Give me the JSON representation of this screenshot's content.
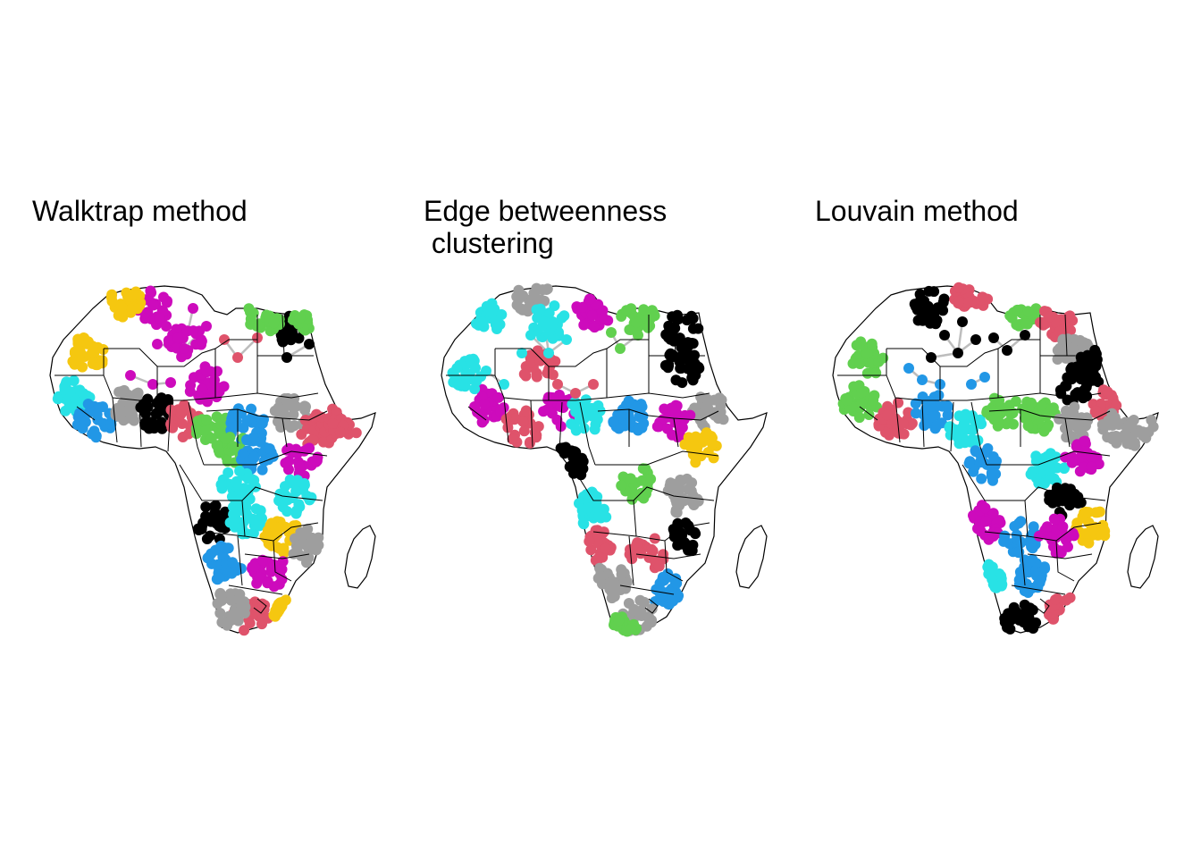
{
  "figure": {
    "panels": [
      {
        "title": "Walktrap method",
        "seed": 11,
        "palette": [
          "#df536b",
          "#2297e6",
          "#61d04f",
          "#cd0bbc",
          "#28e2e5",
          "#f5c710",
          "#9e9e9e",
          "#000000"
        ]
      },
      {
        "title": "Edge betweenness\n clustering",
        "seed": 37,
        "palette": [
          "#df536b",
          "#28e2e5",
          "#cd0bbc",
          "#2297e6",
          "#61d04f",
          "#9e9e9e",
          "#f5c710",
          "#000000"
        ]
      },
      {
        "title": "Louvain method",
        "seed": 73,
        "palette": [
          "#df536b",
          "#000000",
          "#61d04f",
          "#28e2e5",
          "#2297e6",
          "#9e9e9e",
          "#cd0bbc",
          "#f5c710"
        ]
      }
    ],
    "colors": {
      "boundary": "#000000",
      "edge": "#bdbdbd",
      "land": "#ffffff"
    }
  }
}
